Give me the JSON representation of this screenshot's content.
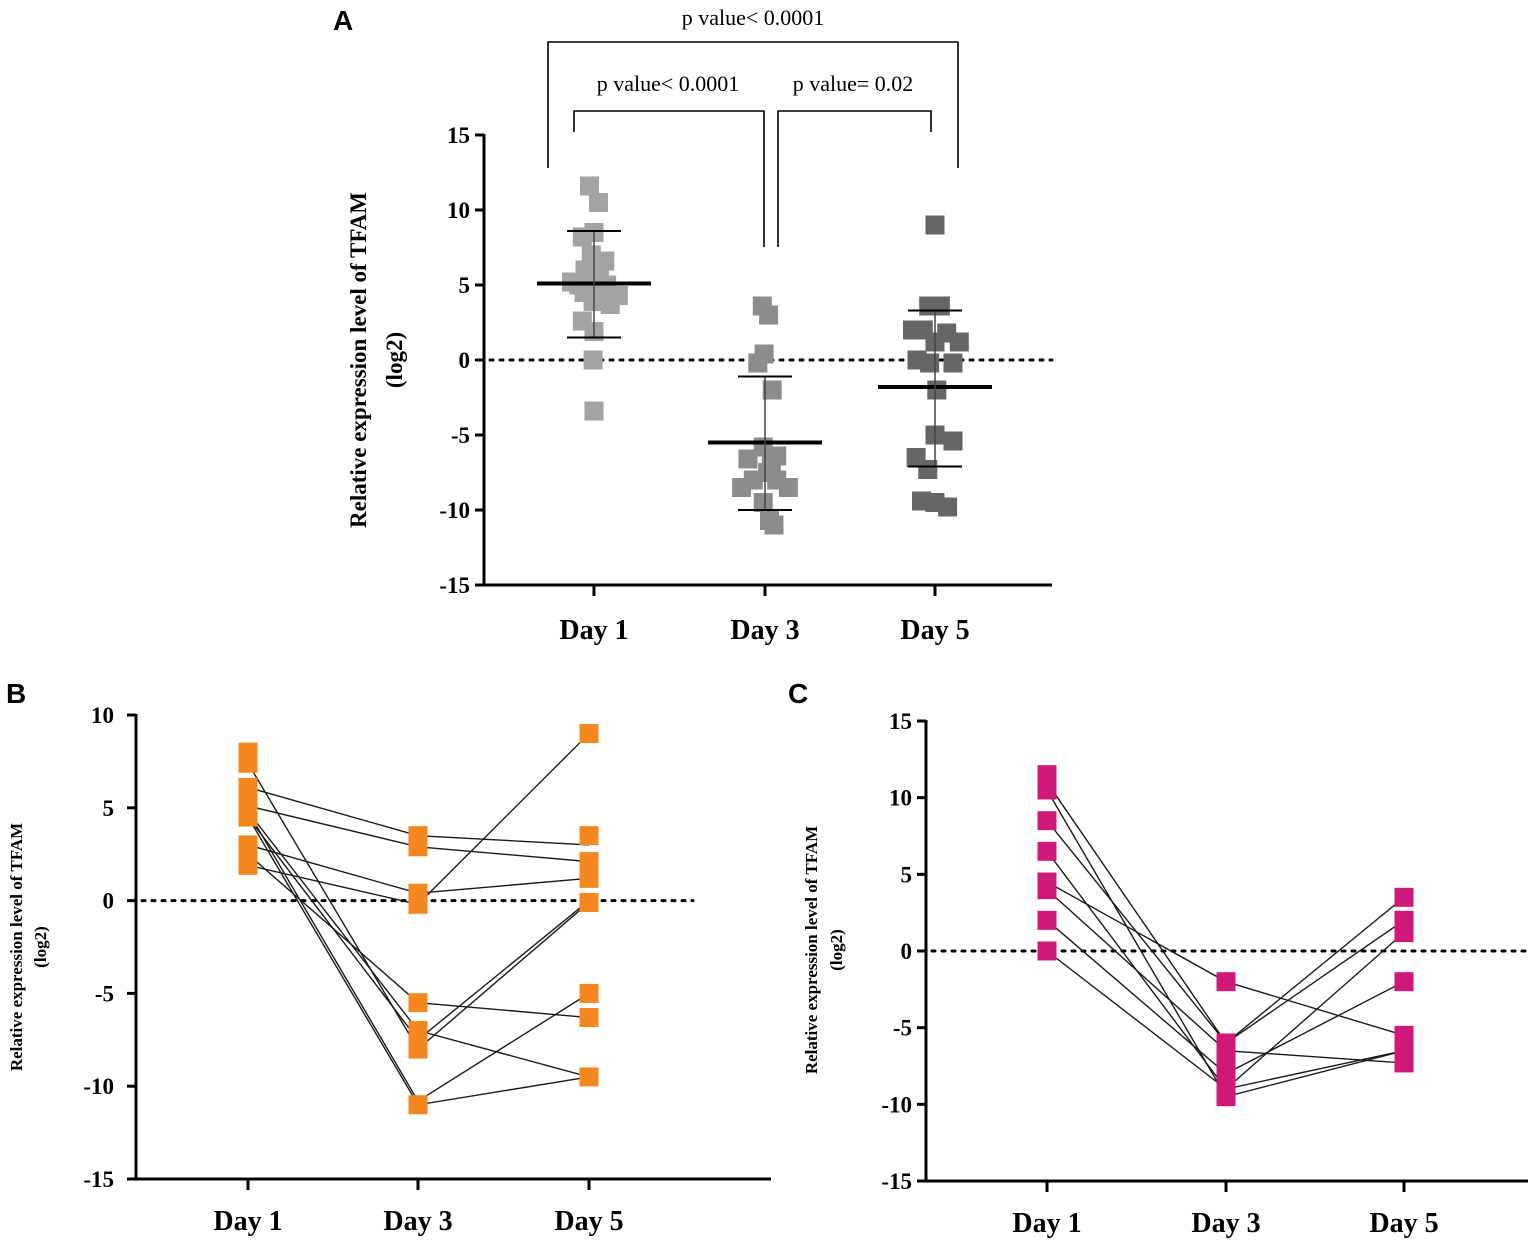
{
  "figure": {
    "chart_data": [
      {
        "panel": "A",
        "type": "scatter",
        "ylabel_line1": "Relative expression level of TFAM",
        "ylabel_line2": "(log2)",
        "ylim": [
          -15,
          15
        ],
        "yticks": [
          15,
          10,
          5,
          0,
          -5,
          -10,
          -15
        ],
        "categories": [
          "Day 1",
          "Day 3",
          "Day 5"
        ],
        "reference_line": 0,
        "colors": [
          "#a3a3a3",
          "#8c8c8c",
          "#666666"
        ],
        "series": [
          {
            "name": "Day 1",
            "mean": 5.1,
            "sd_high": 8.6,
            "sd_low": 1.5,
            "points": [
              [
                -0.05,
                11.6
              ],
              [
                0.05,
                10.5
              ],
              [
                -0.13,
                8.2
              ],
              [
                0.0,
                8.5
              ],
              [
                -0.03,
                7.0
              ],
              [
                0.12,
                6.6
              ],
              [
                -0.1,
                6.0
              ],
              [
                0.06,
                5.9
              ],
              [
                -0.25,
                5.2
              ],
              [
                -0.17,
                5.0
              ],
              [
                -0.03,
                5.0
              ],
              [
                0.14,
                5.0
              ],
              [
                -0.11,
                4.5
              ],
              [
                0.07,
                4.4
              ],
              [
                0.27,
                4.3
              ],
              [
                -0.01,
                3.9
              ],
              [
                0.18,
                3.7
              ],
              [
                -0.13,
                2.6
              ],
              [
                0.0,
                1.9
              ],
              [
                -0.01,
                0.0
              ],
              [
                0.0,
                -3.4
              ]
            ]
          },
          {
            "name": "Day 3",
            "mean": -5.5,
            "sd_high": -1.1,
            "sd_low": -10.0,
            "points": [
              [
                -0.03,
                3.6
              ],
              [
                0.04,
                3.0
              ],
              [
                -0.01,
                0.4
              ],
              [
                -0.08,
                -0.2
              ],
              [
                0.08,
                -2.0
              ],
              [
                -0.02,
                -5.8
              ],
              [
                0.13,
                -6.4
              ],
              [
                -0.19,
                -6.6
              ],
              [
                0.07,
                -7.0
              ],
              [
                0.03,
                -7.5
              ],
              [
                -0.13,
                -8.0
              ],
              [
                0.13,
                -8.0
              ],
              [
                -0.26,
                -8.5
              ],
              [
                0.26,
                -8.5
              ],
              [
                -0.02,
                -9.5
              ],
              [
                0.05,
                -10.7
              ],
              [
                0.1,
                -11.0
              ]
            ]
          },
          {
            "name": "Day 5",
            "mean": -1.8,
            "sd_high": 3.3,
            "sd_low": -7.1,
            "points": [
              [
                0.0,
                9.0
              ],
              [
                -0.07,
                3.6
              ],
              [
                0.06,
                3.6
              ],
              [
                -0.25,
                2.0
              ],
              [
                -0.13,
                2.0
              ],
              [
                0.13,
                1.8
              ],
              [
                0.27,
                1.2
              ],
              [
                0.0,
                1.2
              ],
              [
                -0.2,
                0.0
              ],
              [
                -0.06,
                -0.2
              ],
              [
                0.2,
                -0.2
              ],
              [
                0.02,
                -2.0
              ],
              [
                0.0,
                -5.0
              ],
              [
                0.2,
                -5.4
              ],
              [
                -0.21,
                -6.5
              ],
              [
                -0.08,
                -7.3
              ],
              [
                -0.15,
                -9.4
              ],
              [
                0.0,
                -9.5
              ],
              [
                0.14,
                -9.8
              ]
            ]
          }
        ],
        "comparisons": [
          {
            "label": "p value< 0.0001",
            "from": "Day 1",
            "to": "Day 5"
          },
          {
            "label": "p value< 0.0001",
            "from": "Day 1",
            "to": "Day 3"
          },
          {
            "label": "p value= 0.02",
            "from": "Day 3",
            "to": "Day 5"
          }
        ]
      },
      {
        "panel": "B",
        "type": "line",
        "ylabel_line1": "Relative expression level of TFAM",
        "ylabel_line2": "(log2)",
        "ylim": [
          -15,
          10
        ],
        "yticks": [
          10,
          5,
          0,
          -5,
          -10,
          -15
        ],
        "categories": [
          "Day 1",
          "Day 3",
          "Day 5"
        ],
        "reference_line": 0,
        "color": "#f5871f",
        "markers": [
          [
            8.0,
            7.4,
            6.1,
            5.1,
            4.8,
            4.5,
            3.0,
            2.5,
            1.9
          ],
          [
            3.5,
            2.9,
            0.4,
            -0.2,
            -5.5,
            -7.0,
            -7.5,
            -8.0,
            -11.0
          ],
          [
            9.0,
            3.5,
            2.1,
            1.2,
            -0.1,
            -5.0,
            -6.3,
            -9.5
          ]
        ],
        "subjects": [
          [
            7.4,
            -8.0,
            -0.1
          ],
          [
            6.1,
            3.5,
            3.0
          ],
          [
            5.1,
            2.9,
            2.1
          ],
          [
            4.8,
            -7.0,
            -9.5
          ],
          [
            4.5,
            -11.0,
            -9.5
          ],
          [
            3.0,
            0.4,
            1.2
          ],
          [
            2.5,
            -5.5,
            -6.3
          ],
          [
            1.9,
            -0.2,
            9.0
          ],
          [
            4.5,
            -7.5,
            0.0
          ],
          [
            4.8,
            -10.8,
            -5.0
          ]
        ]
      },
      {
        "panel": "C",
        "type": "line",
        "ylabel_line1": "Relative expression level of TFAM",
        "ylabel_line2": "(log2)",
        "ylim": [
          -15,
          15
        ],
        "yticks": [
          15,
          10,
          5,
          0,
          -5,
          -10,
          -15
        ],
        "categories": [
          "Day 1",
          "Day 3",
          "Day 5"
        ],
        "reference_line": 0,
        "color": "#d0187a",
        "markers": [
          [
            11.5,
            10.5,
            8.5,
            6.5,
            4.5,
            4.0,
            2.0,
            0.0
          ],
          [
            -2.0,
            -6.0,
            -7.0,
            -8.0,
            -9.0,
            -9.5
          ],
          [
            3.5,
            2.0,
            1.2,
            -2.0,
            -5.5,
            -6.5,
            -7.3
          ]
        ],
        "subjects": [
          [
            11.0,
            -6.0,
            3.5
          ],
          [
            10.5,
            -9.5,
            -6.5
          ],
          [
            8.5,
            -6.0,
            2.0
          ],
          [
            6.5,
            -9.0,
            1.2
          ],
          [
            4.5,
            -2.0,
            -5.5
          ],
          [
            4.0,
            -6.5,
            -7.3
          ],
          [
            2.0,
            -8.0,
            -2.0
          ],
          [
            0.0,
            -9.0,
            -6.5
          ]
        ]
      }
    ]
  }
}
